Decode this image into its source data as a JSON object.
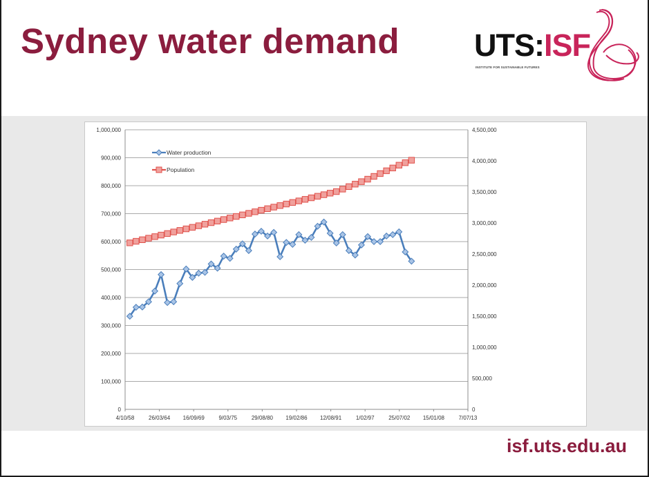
{
  "slide": {
    "title": "Sydney water demand",
    "footer_url": "isf.uts.edu.au",
    "colors": {
      "title": "#8b1d3e",
      "band": "#e9e9e9",
      "logo_accent": "#c8245a"
    }
  },
  "logo": {
    "text_main": "UTS:",
    "text_accent": "ISF",
    "subtitle": "INSTITUTE FOR SUSTAINABLE FUTURES",
    "icon": "ribbon-swirl-icon"
  },
  "chart_data": {
    "type": "line",
    "title": "",
    "xlabel": "",
    "ylabel": "",
    "x_ticks": [
      "4/10/58",
      "26/03/64",
      "16/09/69",
      "9/03/75",
      "29/08/80",
      "19/02/86",
      "12/08/91",
      "1/02/97",
      "25/07/02",
      "15/01/08",
      "7/07/13"
    ],
    "y_left": {
      "min": 0,
      "max": 1000000,
      "tick_labels": [
        "0",
        "100,000",
        "200,000",
        "300,000",
        "400,000",
        "500,000",
        "600,000",
        "700,000",
        "800,000",
        "900,000",
        "1,000,000"
      ]
    },
    "y_right": {
      "min": 0,
      "max": 4500000,
      "tick_labels": [
        "0",
        "500,000",
        "1,000,000",
        "1,500,000",
        "2,000,000",
        "2,500,000",
        "3,000,000",
        "3,500,000",
        "4,000,000",
        "4,500,000"
      ]
    },
    "grid": true,
    "legend": {
      "placement": "top-left"
    },
    "series": [
      {
        "name": "Water production",
        "axis": "left",
        "color": "#4a7ebb",
        "marker": "diamond",
        "x_start_year": 1959,
        "values": [
          333000,
          365000,
          366000,
          385000,
          423000,
          482000,
          382000,
          385000,
          450000,
          502000,
          472000,
          487000,
          490000,
          520000,
          505000,
          548000,
          540000,
          573000,
          592000,
          568000,
          627000,
          637000,
          620000,
          633000,
          546000,
          597000,
          590000,
          625000,
          605000,
          615000,
          655000,
          670000,
          630000,
          595000,
          625000,
          568000,
          552000,
          588000,
          618000,
          600000,
          600000,
          620000,
          625000,
          635000,
          563000,
          530000
        ]
      },
      {
        "name": "Population",
        "axis": "right",
        "color": "#e0504a",
        "marker": "square",
        "x_start_year": 1959,
        "values": [
          2680000,
          2705000,
          2730000,
          2755000,
          2780000,
          2805000,
          2830000,
          2855000,
          2880000,
          2905000,
          2930000,
          2955000,
          2980000,
          3005000,
          3030000,
          3055000,
          3080000,
          3105000,
          3130000,
          3155000,
          3180000,
          3205000,
          3230000,
          3255000,
          3280000,
          3305000,
          3330000,
          3355000,
          3380000,
          3405000,
          3430000,
          3455000,
          3480000,
          3505000,
          3545000,
          3585000,
          3625000,
          3665000,
          3705000,
          3750000,
          3795000,
          3840000,
          3885000,
          3930000,
          3970000,
          4010000
        ]
      }
    ]
  }
}
